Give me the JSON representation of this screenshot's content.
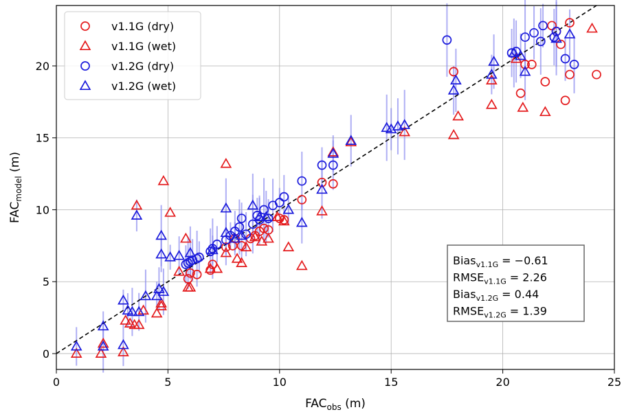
{
  "chart_data": {
    "type": "scatter",
    "xlabel": "FAC",
    "xlabel_sub": "obs",
    "xlabel_unit": " (m)",
    "ylabel": "FAC",
    "ylabel_sub": "model",
    "ylabel_unit": " (m)",
    "xlim": [
      0,
      25
    ],
    "ylim": [
      -1.1,
      24.2
    ],
    "xticks": [
      0,
      5,
      10,
      15,
      20,
      25
    ],
    "yticks": [
      0,
      5,
      10,
      15,
      20
    ],
    "grid": true,
    "legend_placement": "top-left",
    "reference_line": "1:1 dashed",
    "colors": {
      "v11": "#e41a1c",
      "v12": "#1a1adb",
      "errorbar": "#8c8cf0"
    },
    "series": [
      {
        "name": "v1.1G (dry)",
        "marker": "circle",
        "color": "#e41a1c",
        "x": [
          5.9,
          6.0,
          6.3,
          6.9,
          7.0,
          7.6,
          7.9,
          8.0,
          8.3,
          8.7,
          8.9,
          9.1,
          9.3,
          9.5,
          10.0,
          10.2,
          11.0,
          11.9,
          12.4,
          17.8,
          20.8,
          21.0,
          21.3,
          21.9,
          22.2,
          22.4,
          22.6,
          22.8,
          23.0,
          23.0,
          24.2
        ],
        "y": [
          5.2,
          5.6,
          5.5,
          5.8,
          6.2,
          7.4,
          7.5,
          8.0,
          7.5,
          8.0,
          8.2,
          8.5,
          8.7,
          8.6,
          9.4,
          9.3,
          10.7,
          11.9,
          11.8,
          19.6,
          18.1,
          20.1,
          20.1,
          18.9,
          22.8,
          22.4,
          21.5,
          17.6,
          23.0,
          19.4,
          19.4
        ]
      },
      {
        "name": "v1.1G (wet)",
        "marker": "triangle",
        "color": "#e41a1c",
        "x": [
          0.9,
          2.0,
          2.1,
          3.0,
          3.1,
          3.3,
          3.5,
          3.6,
          3.7,
          3.9,
          4.5,
          4.7,
          4.7,
          4.8,
          5.1,
          5.5,
          5.8,
          5.9,
          6.0,
          6.9,
          7.2,
          7.6,
          7.6,
          8.1,
          8.3,
          8.5,
          8.9,
          9.2,
          9.5,
          9.9,
          10.2,
          10.4,
          11.0,
          11.9,
          12.4,
          13.2,
          15.6,
          17.8,
          18.0,
          19.5,
          19.5,
          20.6,
          20.9,
          21.9,
          24.0
        ],
        "y": [
          0.0,
          0.0,
          0.7,
          0.1,
          2.3,
          2.1,
          2.0,
          10.3,
          2.0,
          3.0,
          2.8,
          3.5,
          3.3,
          12.0,
          9.8,
          5.7,
          8.0,
          4.6,
          4.6,
          5.9,
          5.9,
          7.0,
          13.2,
          6.6,
          6.3,
          7.4,
          8.1,
          7.8,
          8.0,
          9.5,
          9.2,
          7.4,
          6.1,
          9.9,
          14.0,
          14.7,
          15.4,
          15.2,
          16.5,
          19.0,
          17.3,
          20.5,
          17.1,
          16.8,
          22.6
        ]
      },
      {
        "name": "v1.2G (dry)",
        "marker": "circle",
        "color": "#1a1adb",
        "x": [
          5.8,
          5.9,
          6.0,
          6.1,
          6.3,
          6.4,
          6.9,
          7.0,
          7.2,
          7.6,
          7.8,
          8.0,
          8.2,
          8.3,
          8.5,
          8.8,
          9.0,
          9.1,
          9.3,
          9.5,
          9.7,
          10.0,
          10.2,
          11.0,
          11.9,
          12.4,
          17.5,
          20.4,
          20.6,
          21.0,
          21.4,
          21.7,
          21.8,
          22.3,
          22.4,
          22.8,
          23.2
        ],
        "y": [
          6.2,
          6.3,
          6.4,
          6.5,
          6.6,
          6.7,
          7.1,
          7.3,
          7.6,
          7.9,
          8.2,
          8.5,
          8.8,
          9.4,
          8.3,
          9.0,
          9.6,
          9.3,
          10.0,
          9.4,
          10.3,
          10.5,
          10.9,
          12.0,
          13.1,
          13.1,
          21.8,
          20.9,
          21.0,
          22.0,
          22.3,
          21.7,
          22.8,
          22.0,
          22.4,
          20.5,
          20.1
        ]
      },
      {
        "name": "v1.2G (wet)",
        "marker": "triangle",
        "color": "#1a1adb",
        "x": [
          0.9,
          2.1,
          2.1,
          3.0,
          3.0,
          3.2,
          3.4,
          3.6,
          3.7,
          4.0,
          4.5,
          4.6,
          4.7,
          4.7,
          4.8,
          5.1,
          5.5,
          6.0,
          7.0,
          7.6,
          7.6,
          8.0,
          8.3,
          8.8,
          9.1,
          9.4,
          10.4,
          11.0,
          11.9,
          12.4,
          13.2,
          14.8,
          15.0,
          15.3,
          15.6,
          17.8,
          17.9,
          19.5,
          19.6,
          20.5,
          20.8,
          21.0,
          22.4,
          23.0
        ],
        "y": [
          0.5,
          0.5,
          1.9,
          0.6,
          3.7,
          3.0,
          2.9,
          9.6,
          2.9,
          4.0,
          4.0,
          4.5,
          8.2,
          6.9,
          4.3,
          6.7,
          6.8,
          7.0,
          7.2,
          8.4,
          10.1,
          8.0,
          8.2,
          10.3,
          9.5,
          9.5,
          10.0,
          9.1,
          11.4,
          13.9,
          14.8,
          15.7,
          15.6,
          15.8,
          15.9,
          18.3,
          19.0,
          19.4,
          20.3,
          20.9,
          20.7,
          19.6,
          21.9,
          22.2
        ]
      }
    ],
    "stats": [
      {
        "label": "Bias",
        "sub": "v1.1G",
        "value": " = −0.61"
      },
      {
        "label": "RMSE",
        "sub": "v1.1G",
        "value": " = 2.26"
      },
      {
        "label": "Bias",
        "sub": "v1.2G",
        "value": " = 0.44"
      },
      {
        "label": "RMSE",
        "sub": "v1.2G",
        "value": " = 1.39"
      }
    ]
  }
}
